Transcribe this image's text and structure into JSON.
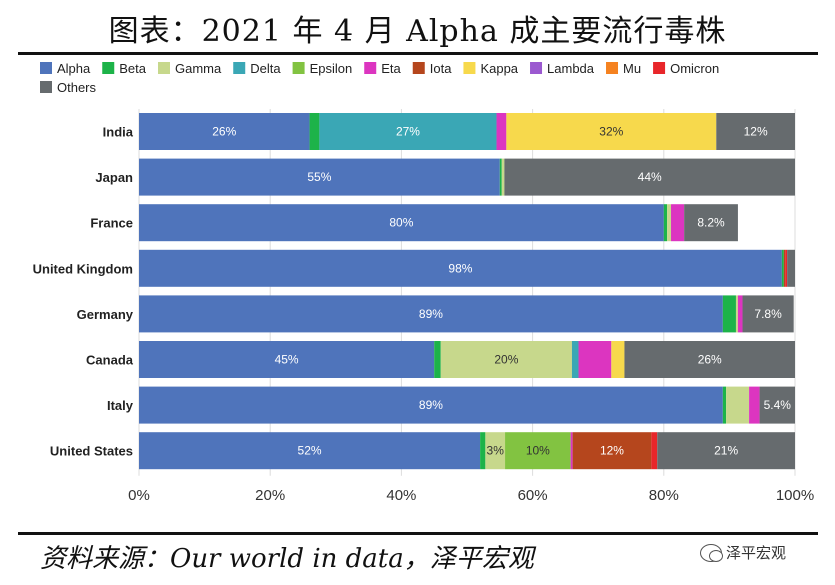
{
  "title": "图表：2021 年 4 月 Alpha 成主要流行毒株",
  "source": "资料来源：Our world in data，泽平宏观",
  "watermark": "泽平宏观",
  "chart_data": {
    "type": "bar",
    "orientation": "horizontal",
    "stacked": true,
    "percent": true,
    "categories": [
      "India",
      "Japan",
      "France",
      "United Kingdom",
      "Germany",
      "Canada",
      "Italy",
      "United States"
    ],
    "xlim": [
      0,
      100
    ],
    "xticks": [
      "0%",
      "20%",
      "40%",
      "60%",
      "80%",
      "100%"
    ],
    "series": [
      {
        "name": "Alpha",
        "color": "#4f74bb",
        "values": [
          26,
          55,
          80,
          98,
          89,
          45,
          89,
          52
        ],
        "labels": [
          "26%",
          "55%",
          "80%",
          "98%",
          "89%",
          "45%",
          "89%",
          "52%"
        ]
      },
      {
        "name": "Beta",
        "color": "#1db349",
        "values": [
          1.5,
          0.3,
          0.5,
          0.3,
          2,
          1,
          0.5,
          0.8
        ],
        "labels": [
          "",
          "",
          "",
          "",
          "",
          "",
          "",
          ""
        ]
      },
      {
        "name": "Gamma",
        "color": "#c7d88c",
        "values": [
          0,
          0.4,
          0.6,
          0,
          0.3,
          20,
          3.5,
          3
        ],
        "labels": [
          "",
          "",
          "",
          "",
          "",
          "20%",
          "",
          "3%"
        ]
      },
      {
        "name": "Delta",
        "color": "#3aa7b5",
        "values": [
          27,
          0,
          0,
          0,
          0,
          1,
          0,
          0
        ],
        "labels": [
          "27%",
          "",
          "",
          "",
          "",
          "",
          "",
          ""
        ]
      },
      {
        "name": "Epsilon",
        "color": "#82c341",
        "values": [
          0,
          0,
          0,
          0,
          0,
          0,
          0,
          10
        ],
        "labels": [
          "",
          "",
          "",
          "",
          "",
          "",
          "",
          "10%"
        ]
      },
      {
        "name": "Eta",
        "color": "#dc35c0",
        "values": [
          1.5,
          0,
          2,
          0,
          0.7,
          5,
          1.6,
          0.3
        ],
        "labels": [
          "",
          "",
          "",
          "",
          "",
          "",
          "",
          ""
        ]
      },
      {
        "name": "Iota",
        "color": "#b5461d",
        "values": [
          0,
          0,
          0,
          0.2,
          0,
          0,
          0,
          12
        ],
        "labels": [
          "",
          "",
          "",
          "",
          "",
          "",
          "",
          "12%"
        ]
      },
      {
        "name": "Kappa",
        "color": "#f7d94c",
        "values": [
          32,
          0,
          0,
          0,
          0,
          2,
          0,
          0
        ],
        "labels": [
          "32%",
          "",
          "",
          "",
          "",
          "",
          "",
          ""
        ]
      },
      {
        "name": "Lambda",
        "color": "#9b59d0",
        "values": [
          0,
          0,
          0,
          0,
          0,
          0,
          0,
          0
        ],
        "labels": [
          "",
          "",
          "",
          "",
          "",
          "",
          "",
          ""
        ]
      },
      {
        "name": "Mu",
        "color": "#f58220",
        "values": [
          0,
          0,
          0,
          0,
          0,
          0,
          0,
          0
        ],
        "labels": [
          "",
          "",
          "",
          "",
          "",
          "",
          "",
          ""
        ]
      },
      {
        "name": "Omicron",
        "color": "#e8262a",
        "values": [
          0,
          0,
          0,
          0.3,
          0,
          0,
          0,
          0.9
        ],
        "labels": [
          "",
          "",
          "",
          "",
          "",
          "",
          "",
          ""
        ]
      },
      {
        "name": "Others",
        "color": "#666b6e",
        "values": [
          12,
          44.3,
          8.2,
          1.2,
          7.8,
          26,
          5.4,
          21
        ],
        "labels": [
          "12%",
          "44%",
          "8.2%",
          "",
          "7.8%",
          "26%",
          "5.4%",
          "21%"
        ]
      }
    ]
  }
}
